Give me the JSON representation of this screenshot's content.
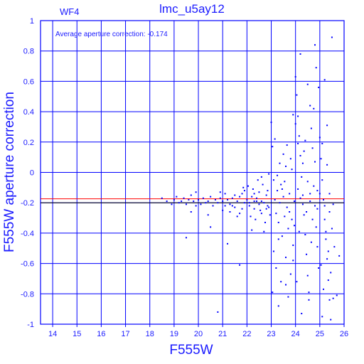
{
  "chart_data": {
    "type": "scatter",
    "title": "lmc_u5ay12",
    "corner_label": "WF4",
    "annotation": "Average aperture correction: -0.174",
    "xlabel": "F555W",
    "ylabel": "F555W aperture correction",
    "xlim": [
      13.5,
      26
    ],
    "ylim": [
      -1,
      1
    ],
    "x_ticks": [
      14,
      15,
      16,
      17,
      18,
      19,
      20,
      21,
      22,
      23,
      24,
      25,
      26
    ],
    "y_ticks": [
      -1,
      -0.8,
      -0.6,
      -0.4,
      -0.2,
      0,
      0.2,
      0.4,
      0.6,
      0.8,
      1
    ],
    "x_tick_labels": [
      "14",
      "15",
      "16",
      "17",
      "18",
      "19",
      "20",
      "21",
      "22",
      "23",
      "24",
      "25",
      "26"
    ],
    "y_tick_labels": [
      "-1",
      "-0.8",
      "-0.6",
      "-0.4",
      "-0.2",
      "0",
      "0.2",
      "0.4",
      "0.6",
      "0.8",
      "1"
    ],
    "grid": true,
    "reference_lines": [
      {
        "y": -0.174,
        "color": "#ff0000"
      },
      {
        "y": -0.2,
        "color": "#000000"
      }
    ],
    "point_color": "#0000ff",
    "axis_color": "#0000ff",
    "series": [
      {
        "points": [
          [
            18.5,
            -0.17
          ],
          [
            18.7,
            -0.19
          ],
          [
            18.9,
            -0.21
          ],
          [
            19.0,
            -0.18
          ],
          [
            19.1,
            -0.16
          ],
          [
            19.2,
            -0.2
          ],
          [
            19.3,
            -0.19
          ],
          [
            19.4,
            -0.17
          ],
          [
            19.5,
            -0.21
          ],
          [
            19.6,
            -0.18
          ],
          [
            19.7,
            -0.15
          ],
          [
            19.8,
            -0.19
          ],
          [
            19.9,
            -0.22
          ],
          [
            19.5,
            -0.43
          ],
          [
            19.7,
            -0.26
          ],
          [
            19.9,
            -0.13
          ],
          [
            20.0,
            -0.18
          ],
          [
            20.1,
            -0.21
          ],
          [
            20.2,
            -0.17
          ],
          [
            20.3,
            -0.2
          ],
          [
            20.4,
            -0.19
          ],
          [
            20.5,
            -0.16
          ],
          [
            20.6,
            -0.22
          ],
          [
            20.7,
            -0.18
          ],
          [
            20.8,
            -0.2
          ],
          [
            20.9,
            -0.17
          ],
          [
            20.5,
            -0.36
          ],
          [
            20.4,
            -0.28
          ],
          [
            20.9,
            -0.13
          ],
          [
            20.8,
            -0.92
          ],
          [
            21.0,
            -0.19
          ],
          [
            21.1,
            -0.22
          ],
          [
            21.2,
            -0.18
          ],
          [
            21.3,
            -0.21
          ],
          [
            21.4,
            -0.17
          ],
          [
            21.5,
            -0.23
          ],
          [
            21.6,
            -0.19
          ],
          [
            21.7,
            -0.16
          ],
          [
            21.8,
            -0.24
          ],
          [
            21.9,
            -0.2
          ],
          [
            21.1,
            -0.14
          ],
          [
            21.3,
            -0.26
          ],
          [
            21.5,
            -0.15
          ],
          [
            21.7,
            -0.27
          ],
          [
            21.9,
            -0.12
          ],
          [
            21.2,
            -0.47
          ],
          [
            21.6,
            -0.29
          ],
          [
            21.8,
            -0.14
          ],
          [
            21.4,
            -0.22
          ],
          [
            21.7,
            -0.61
          ],
          [
            21.0,
            -0.25
          ],
          [
            21.85,
            -0.1
          ],
          [
            22.0,
            -0.18
          ],
          [
            22.1,
            -0.22
          ],
          [
            22.2,
            -0.16
          ],
          [
            22.3,
            -0.24
          ],
          [
            22.4,
            -0.19
          ],
          [
            22.5,
            -0.13
          ],
          [
            22.6,
            -0.27
          ],
          [
            22.7,
            -0.2
          ],
          [
            22.8,
            -0.15
          ],
          [
            22.9,
            -0.23
          ],
          [
            22.05,
            -0.09
          ],
          [
            22.15,
            -0.29
          ],
          [
            22.25,
            -0.11
          ],
          [
            22.35,
            -0.31
          ],
          [
            22.45,
            -0.05
          ],
          [
            22.55,
            -0.25
          ],
          [
            22.65,
            -0.08
          ],
          [
            22.75,
            -0.33
          ],
          [
            22.85,
            -0.12
          ],
          [
            22.95,
            -0.28
          ],
          [
            22.2,
            -0.38
          ],
          [
            22.3,
            -0.19
          ],
          [
            22.5,
            -0.21
          ],
          [
            22.6,
            -0.03
          ],
          [
            22.7,
            -0.39
          ],
          [
            22.8,
            -0.24
          ],
          [
            22.9,
            -0.01
          ],
          [
            22.4,
            -0.17
          ],
          [
            22.6,
            -0.19
          ],
          [
            22.1,
            -0.2
          ],
          [
            22.3,
            -0.14
          ],
          [
            22.85,
            -0.22
          ],
          [
            23.0,
            0.33
          ],
          [
            23.05,
            0.17
          ],
          [
            23.1,
            -0.05
          ],
          [
            23.15,
            -0.18
          ],
          [
            23.2,
            -0.27
          ],
          [
            23.25,
            -0.12
          ],
          [
            23.3,
            -0.33
          ],
          [
            23.35,
            -0.2
          ],
          [
            23.4,
            -0.08
          ],
          [
            23.45,
            -0.42
          ],
          [
            23.5,
            -0.16
          ],
          [
            23.55,
            -0.29
          ],
          [
            23.6,
            0.04
          ],
          [
            23.65,
            -0.23
          ],
          [
            23.7,
            -0.37
          ],
          [
            23.75,
            -0.14
          ],
          [
            23.8,
            0.09
          ],
          [
            23.85,
            -0.31
          ],
          [
            23.9,
            -0.48
          ],
          [
            23.95,
            -0.19
          ],
          [
            23.1,
            -0.52
          ],
          [
            23.2,
            -0.63
          ],
          [
            23.3,
            -0.44
          ],
          [
            23.4,
            -0.72
          ],
          [
            23.5,
            0.12
          ],
          [
            23.6,
            -0.56
          ],
          [
            23.7,
            -0.82
          ],
          [
            23.8,
            -0.67
          ],
          [
            23.9,
            0.38
          ],
          [
            23.15,
            0.22
          ],
          [
            23.25,
            -0.02
          ],
          [
            23.35,
            0.06
          ],
          [
            23.45,
            -0.11
          ],
          [
            23.55,
            -0.06
          ],
          [
            23.65,
            0.18
          ],
          [
            23.75,
            -0.26
          ],
          [
            23.85,
            0.02
          ],
          [
            23.95,
            -0.35
          ],
          [
            23.05,
            -0.79
          ],
          [
            23.3,
            -0.88
          ],
          [
            23.6,
            -0.74
          ],
          [
            23.9,
            -0.58
          ],
          [
            24.0,
            0.63
          ],
          [
            24.05,
            0.51
          ],
          [
            24.1,
            0.37
          ],
          [
            24.15,
            0.24
          ],
          [
            24.2,
            0.11
          ],
          [
            24.25,
            -0.03
          ],
          [
            24.3,
            -0.15
          ],
          [
            24.35,
            -0.28
          ],
          [
            24.4,
            -0.41
          ],
          [
            24.45,
            -0.54
          ],
          [
            24.5,
            -0.68
          ],
          [
            24.55,
            -0.79
          ],
          [
            24.6,
            0.44
          ],
          [
            24.65,
            0.29
          ],
          [
            24.7,
            0.16
          ],
          [
            24.75,
            -0.09
          ],
          [
            24.8,
            -0.22
          ],
          [
            24.85,
            -0.36
          ],
          [
            24.9,
            -0.49
          ],
          [
            24.95,
            -0.63
          ],
          [
            24.0,
            0.32
          ],
          [
            24.1,
            0.19
          ],
          [
            24.2,
            -0.17
          ],
          [
            24.3,
            0.06
          ],
          [
            24.4,
            0.21
          ],
          [
            24.5,
            -0.06
          ],
          [
            24.6,
            -0.19
          ],
          [
            24.7,
            -0.31
          ],
          [
            24.8,
            0.07
          ],
          [
            24.9,
            -0.12
          ],
          [
            24.05,
            -0.72
          ],
          [
            24.15,
            -0.39
          ],
          [
            24.25,
            -0.93
          ],
          [
            24.35,
            0.14
          ],
          [
            24.45,
            -0.26
          ],
          [
            24.55,
            -0.84
          ],
          [
            24.65,
            -0.46
          ],
          [
            24.75,
            0.42
          ],
          [
            24.85,
            0.69
          ],
          [
            24.95,
            0.56
          ],
          [
            24.2,
            0.78
          ],
          [
            24.5,
            0.58
          ],
          [
            24.8,
            0.84
          ],
          [
            24.1,
            -0.11
          ],
          [
            24.3,
            -0.21
          ],
          [
            24.6,
            -0.14
          ],
          [
            24.9,
            -0.24
          ],
          [
            25.0,
            0.23
          ],
          [
            25.05,
            0.09
          ],
          [
            25.1,
            -0.05
          ],
          [
            25.15,
            -0.18
          ],
          [
            25.2,
            -0.31
          ],
          [
            25.25,
            -0.44
          ],
          [
            25.3,
            -0.57
          ],
          [
            25.35,
            -0.71
          ],
          [
            25.4,
            -0.84
          ],
          [
            25.45,
            -0.97
          ],
          [
            25.5,
            0.89
          ],
          [
            25.0,
            -0.14
          ],
          [
            25.1,
            0.19
          ],
          [
            25.2,
            -0.22
          ],
          [
            25.3,
            0.05
          ],
          [
            25.4,
            -0.14
          ],
          [
            25.5,
            -0.37
          ],
          [
            25.05,
            -0.61
          ],
          [
            25.15,
            -0.77
          ],
          [
            25.25,
            -0.39
          ],
          [
            25.35,
            -0.52
          ],
          [
            25.45,
            -0.66
          ],
          [
            25.55,
            -0.21
          ],
          [
            25.6,
            -0.49
          ],
          [
            25.7,
            -0.81
          ],
          [
            25.8,
            -0.55
          ],
          [
            25.55,
            -0.83
          ],
          [
            25.1,
            -0.95
          ],
          [
            25.3,
            0.31
          ],
          [
            25.2,
            0.61
          ],
          [
            25.4,
            -0.26
          ]
        ]
      }
    ]
  }
}
